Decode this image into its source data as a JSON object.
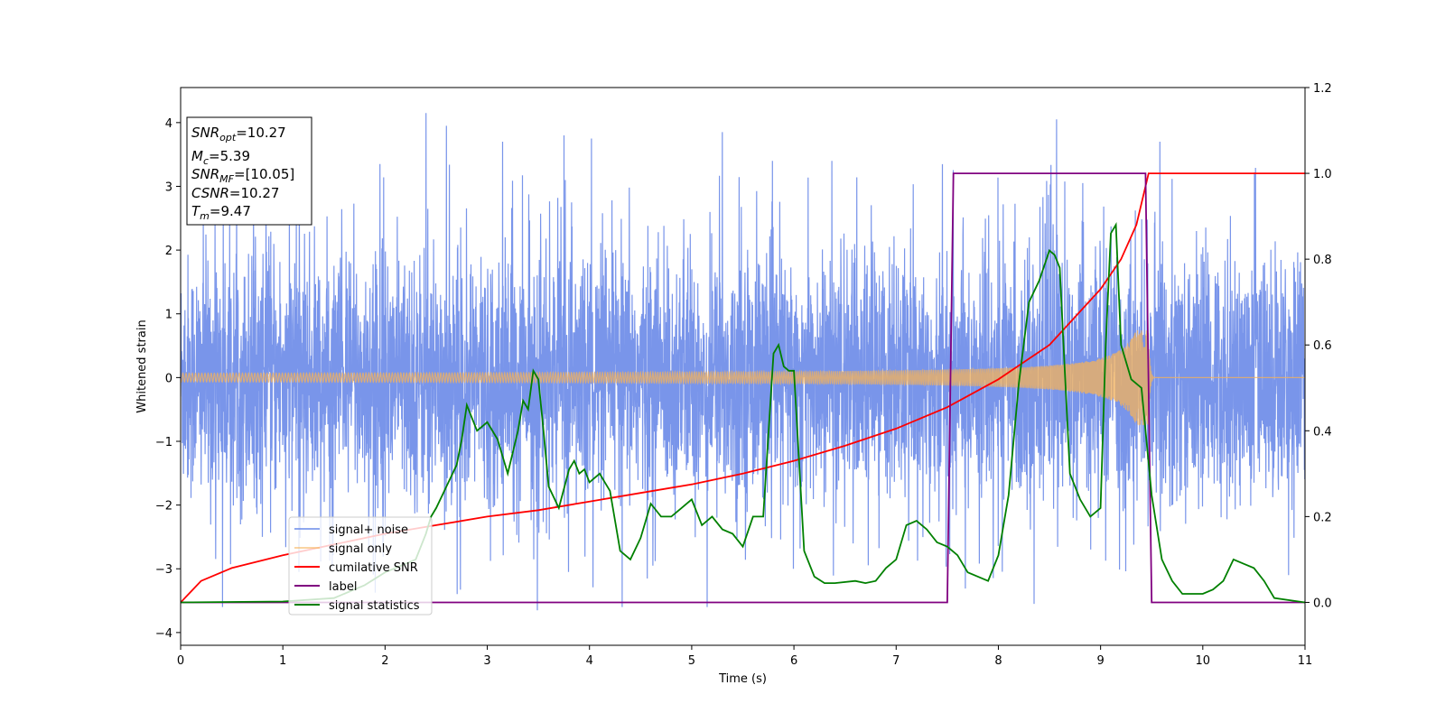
{
  "chart_data": {
    "type": "line",
    "xlabel": "Time (s)",
    "ylabel": "Whitened strain",
    "xlim": [
      0,
      11
    ],
    "ylim_left": [
      -4.2,
      4.55
    ],
    "ylim_right": [
      -0.1,
      1.2
    ],
    "x_ticks": [
      0,
      1,
      2,
      3,
      4,
      5,
      6,
      7,
      8,
      9,
      10,
      11
    ],
    "y_ticks_left": [
      -4,
      -3,
      -2,
      -1,
      0,
      1,
      2,
      3,
      4
    ],
    "y_ticks_right": [
      0.0,
      0.2,
      0.4,
      0.6,
      0.8,
      1.0,
      1.2
    ],
    "grid": false,
    "legend_position": "lower-left",
    "legend": [
      "signal+ noise",
      "signal only",
      "cumilative SNR",
      "label",
      "signal statistics"
    ],
    "series": [
      {
        "name": "signal+ noise",
        "axis": "left",
        "color": "#6a8ae8",
        "kind": "noise",
        "typical_range": [
          -2.2,
          2.2
        ],
        "peaks": [
          {
            "x": 0.41,
            "y": -3.6
          },
          {
            "x": 1.95,
            "y": 3.35
          },
          {
            "x": 2.4,
            "y": 4.15
          },
          {
            "x": 2.6,
            "y": 3.95
          },
          {
            "x": 3.15,
            "y": 3.7
          },
          {
            "x": 3.49,
            "y": -3.65
          },
          {
            "x": 3.75,
            "y": 3.8
          },
          {
            "x": 4.02,
            "y": 3.75
          },
          {
            "x": 4.32,
            "y": -3.6
          },
          {
            "x": 5.15,
            "y": -3.6
          },
          {
            "x": 5.3,
            "y": 3.85
          },
          {
            "x": 8.35,
            "y": -3.55
          },
          {
            "x": 8.57,
            "y": 4.05
          },
          {
            "x": 9.58,
            "y": 3.7
          },
          {
            "x": 10.84,
            "y": -3.1
          }
        ]
      },
      {
        "name": "signal only",
        "axis": "left",
        "color": "#f5b35a",
        "kind": "chirp",
        "t_merge": 9.47,
        "amplitude_start": 0.05,
        "amplitude_end": 0.75
      },
      {
        "name": "cumilative SNR",
        "axis": "right",
        "color": "#ff0000",
        "x": [
          0,
          0.2,
          0.5,
          1.0,
          1.5,
          2.0,
          2.5,
          3.0,
          3.5,
          4.0,
          4.5,
          5.0,
          5.5,
          6.0,
          6.5,
          7.0,
          7.5,
          8.0,
          8.5,
          9.0,
          9.2,
          9.35,
          9.47,
          11
        ],
        "y": [
          0.0,
          0.05,
          0.08,
          0.11,
          0.135,
          0.16,
          0.18,
          0.2,
          0.215,
          0.235,
          0.255,
          0.275,
          0.3,
          0.33,
          0.365,
          0.405,
          0.455,
          0.52,
          0.6,
          0.73,
          0.8,
          0.88,
          1.0,
          1.0
        ]
      },
      {
        "name": "label",
        "axis": "right",
        "color": "#800080",
        "x": [
          0,
          7.5,
          7.56,
          9.44,
          9.5,
          11
        ],
        "y": [
          0,
          0,
          1,
          1,
          0,
          0
        ]
      },
      {
        "name": "signal statistics",
        "axis": "right",
        "color": "#008000",
        "x": [
          0,
          1.0,
          1.5,
          1.8,
          2.0,
          2.3,
          2.4,
          2.45,
          2.5,
          2.6,
          2.7,
          2.75,
          2.8,
          2.9,
          3.0,
          3.1,
          3.2,
          3.3,
          3.35,
          3.4,
          3.45,
          3.5,
          3.55,
          3.6,
          3.7,
          3.8,
          3.85,
          3.9,
          3.95,
          4.0,
          4.1,
          4.15,
          4.2,
          4.3,
          4.4,
          4.5,
          4.6,
          4.7,
          4.8,
          4.9,
          5.0,
          5.1,
          5.2,
          5.3,
          5.4,
          5.5,
          5.6,
          5.7,
          5.8,
          5.85,
          5.9,
          5.95,
          6.0,
          6.1,
          6.2,
          6.3,
          6.4,
          6.6,
          6.7,
          6.8,
          6.9,
          7.0,
          7.1,
          7.2,
          7.3,
          7.4,
          7.5,
          7.6,
          7.7,
          7.8,
          7.9,
          8.0,
          8.1,
          8.2,
          8.3,
          8.4,
          8.5,
          8.55,
          8.6,
          8.65,
          8.7,
          8.8,
          8.9,
          9.0,
          9.05,
          9.1,
          9.15,
          9.2,
          9.3,
          9.4,
          9.5,
          9.6,
          9.7,
          9.8,
          10.0,
          10.1,
          10.2,
          10.3,
          10.4,
          10.5,
          10.6,
          10.7,
          11.0
        ],
        "y": [
          0.0,
          0.002,
          0.01,
          0.04,
          0.07,
          0.1,
          0.16,
          0.2,
          0.22,
          0.27,
          0.32,
          0.38,
          0.46,
          0.4,
          0.42,
          0.38,
          0.3,
          0.4,
          0.47,
          0.45,
          0.54,
          0.52,
          0.4,
          0.27,
          0.22,
          0.31,
          0.33,
          0.3,
          0.31,
          0.28,
          0.3,
          0.28,
          0.26,
          0.12,
          0.1,
          0.15,
          0.23,
          0.2,
          0.2,
          0.22,
          0.24,
          0.18,
          0.2,
          0.17,
          0.16,
          0.13,
          0.2,
          0.2,
          0.58,
          0.6,
          0.55,
          0.54,
          0.54,
          0.12,
          0.06,
          0.045,
          0.045,
          0.05,
          0.045,
          0.05,
          0.08,
          0.1,
          0.18,
          0.19,
          0.17,
          0.14,
          0.13,
          0.11,
          0.07,
          0.06,
          0.05,
          0.11,
          0.25,
          0.51,
          0.7,
          0.75,
          0.82,
          0.81,
          0.78,
          0.54,
          0.3,
          0.24,
          0.2,
          0.22,
          0.6,
          0.86,
          0.88,
          0.6,
          0.52,
          0.5,
          0.25,
          0.1,
          0.05,
          0.02,
          0.02,
          0.03,
          0.05,
          0.1,
          0.09,
          0.08,
          0.05,
          0.01,
          0.0
        ]
      }
    ],
    "annotation_box": [
      {
        "sym": "SNR",
        "sub": "opt",
        "val": "=10.27"
      },
      {
        "sym": "M",
        "sub": "c",
        "val": "=5.39"
      },
      {
        "sym": "SNR",
        "sub": "MF",
        "val": "=[10.05]"
      },
      {
        "sym": "CSNR",
        "sub": "",
        "val": "=10.27"
      },
      {
        "sym": "T",
        "sub": "m",
        "val": "=9.47"
      }
    ]
  }
}
